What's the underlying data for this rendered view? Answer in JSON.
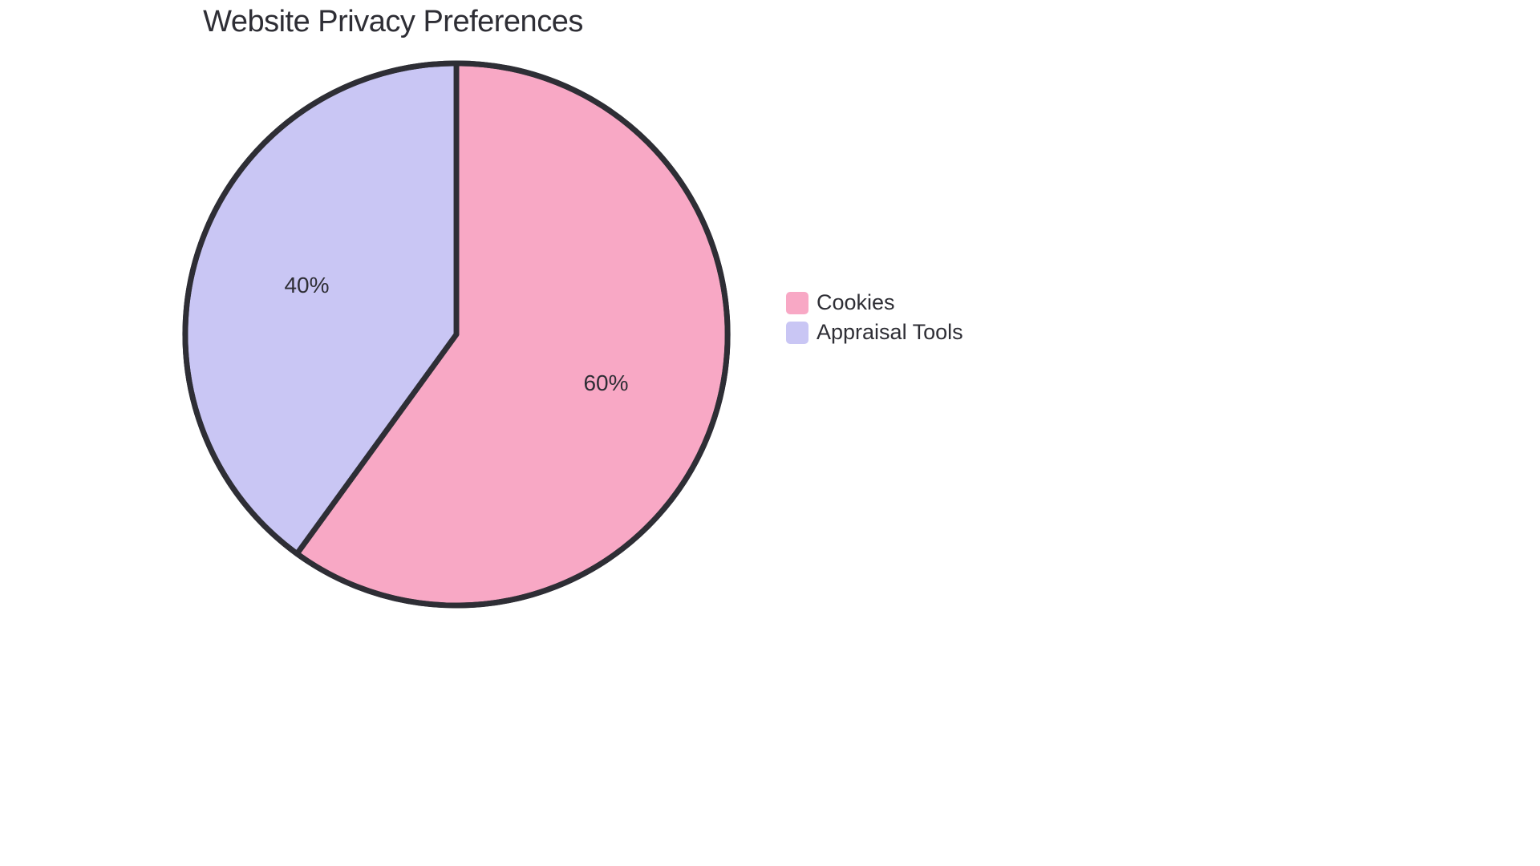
{
  "chart": {
    "type": "pie",
    "title": "Website Privacy Preferences",
    "title_fontsize": 38,
    "title_color": "#2e2e35",
    "background_color": "#ffffff",
    "stroke_color": "#2e2e35",
    "stroke_width": 2,
    "label_fontsize": 28,
    "label_color": "#2e2e35",
    "legend": {
      "fontsize": 27,
      "text_color": "#2e2e35",
      "swatch_radius": 5
    },
    "slices": [
      {
        "name": "Cookies",
        "value": 60,
        "label": "60%",
        "color": "#f8a8c5"
      },
      {
        "name": "Appraisal Tools",
        "value": 40,
        "label": "40%",
        "color": "#c9c6f4"
      }
    ]
  }
}
